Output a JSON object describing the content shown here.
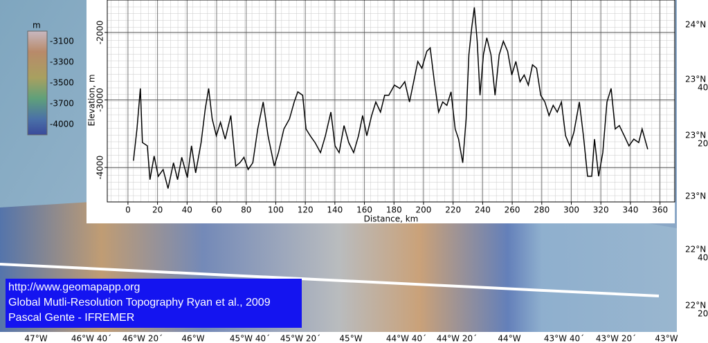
{
  "chart_data": {
    "type": "line",
    "xlabel": "Distance, km",
    "ylabel": "Elevation, m",
    "color": "#000000",
    "grid": true,
    "xlim": [
      -14,
      370
    ],
    "ylim": [
      -4510,
      -1520
    ],
    "xticks": [
      0,
      20,
      40,
      60,
      80,
      100,
      120,
      140,
      160,
      180,
      200,
      220,
      240,
      260,
      280,
      300,
      320,
      340,
      360
    ],
    "yticks": [
      -4000,
      -3000,
      -2000
    ],
    "x": [
      3.7,
      6.1,
      8.4,
      9.8,
      13.1,
      14.9,
      17.7,
      20.5,
      23.8,
      27.1,
      30.8,
      33.6,
      36.4,
      40.2,
      43,
      45.8,
      49.5,
      52.3,
      54.6,
      57,
      59.8,
      62.6,
      65.8,
      69.6,
      72.9,
      75.7,
      78.5,
      81.3,
      84.5,
      87.8,
      91.5,
      94.8,
      99,
      101.8,
      105.5,
      109.3,
      112.5,
      114.9,
      118.2,
      120.5,
      123.3,
      126.6,
      130.3,
      133.6,
      137.3,
      140.1,
      142.9,
      146.2,
      149.4,
      152.7,
      156,
      158.8,
      161.6,
      164.9,
      167.7,
      170.9,
      173.7,
      176.5,
      180.3,
      184,
      187.3,
      190.5,
      193.3,
      196.1,
      198.9,
      202.2,
      204.5,
      207.3,
      210.2,
      213,
      215.8,
      218.6,
      221.4,
      223.7,
      226.5,
      228.8,
      230.7,
      232.6,
      234.4,
      236.3,
      238.2,
      240.5,
      242.8,
      245.6,
      248.4,
      251.2,
      254,
      256.9,
      259.7,
      262.5,
      265.3,
      268.1,
      270.9,
      273.7,
      276.5,
      279.3,
      282.1,
      284.9,
      287.7,
      290.5,
      293.3,
      296.1,
      298.9,
      301.7,
      305.4,
      308.2,
      311,
      313.8,
      315.7,
      318.5,
      321.3,
      324.1,
      326.9,
      329.7,
      332.5,
      335.8,
      339,
      342.3,
      345.6,
      347.9,
      351.7
    ],
    "values": [
      -3900,
      -3430,
      -2830,
      -3630,
      -3680,
      -4180,
      -3830,
      -4130,
      -4030,
      -4310,
      -3930,
      -4180,
      -3850,
      -4150,
      -3680,
      -4080,
      -3630,
      -3130,
      -2830,
      -3280,
      -3530,
      -3330,
      -3580,
      -3230,
      -3980,
      -3930,
      -3850,
      -4030,
      -3930,
      -3430,
      -3030,
      -3530,
      -3980,
      -3780,
      -3430,
      -3280,
      -3030,
      -2880,
      -2930,
      -3430,
      -3530,
      -3630,
      -3780,
      -3530,
      -3180,
      -3680,
      -3780,
      -3380,
      -3630,
      -3780,
      -3530,
      -3230,
      -3530,
      -3230,
      -3030,
      -3180,
      -2930,
      -2930,
      -2780,
      -2830,
      -2730,
      -3030,
      -2730,
      -2430,
      -2530,
      -2280,
      -2230,
      -2730,
      -3180,
      -3030,
      -3080,
      -2880,
      -3430,
      -3580,
      -3930,
      -3280,
      -2330,
      -1930,
      -1630,
      -2130,
      -2930,
      -2330,
      -2080,
      -2330,
      -2930,
      -2330,
      -2130,
      -2280,
      -2630,
      -2430,
      -2730,
      -2630,
      -2780,
      -2480,
      -2530,
      -2930,
      -3030,
      -3230,
      -3080,
      -3180,
      -3030,
      -3530,
      -3680,
      -3480,
      -3030,
      -3530,
      -4130,
      -4130,
      -3580,
      -4130,
      -3780,
      -3030,
      -2830,
      -3430,
      -3380,
      -3530,
      -3680,
      -3580,
      -3630,
      -3430,
      -3730
    ]
  },
  "colorbar": {
    "title": "m",
    "ticks": [
      -3100,
      -3300,
      -3500,
      -3700,
      -4000
    ]
  },
  "latitude_labels": [
    [
      "24°N"
    ],
    [
      "23°N",
      "40´"
    ],
    [
      "23°N",
      "20´"
    ],
    [
      "23°N"
    ],
    [
      "22°N",
      "40´"
    ],
    [
      "22°N",
      "20´"
    ]
  ],
  "longitude_labels": [
    "47°W",
    "46°W 40´",
    "46°W 20´",
    "46°W",
    "45°W 40´",
    "45°W 20´",
    "45°W",
    "44°W 40´",
    "44°W 20´",
    "44°W",
    "43°W 40´",
    "43°W 20´",
    "43°W"
  ],
  "credits": [
    "http://www.geomapapp.org",
    "Global Mutli-Resolution Topography Ryan et al., 2009",
    "Pascal Gente - IFREMER"
  ]
}
